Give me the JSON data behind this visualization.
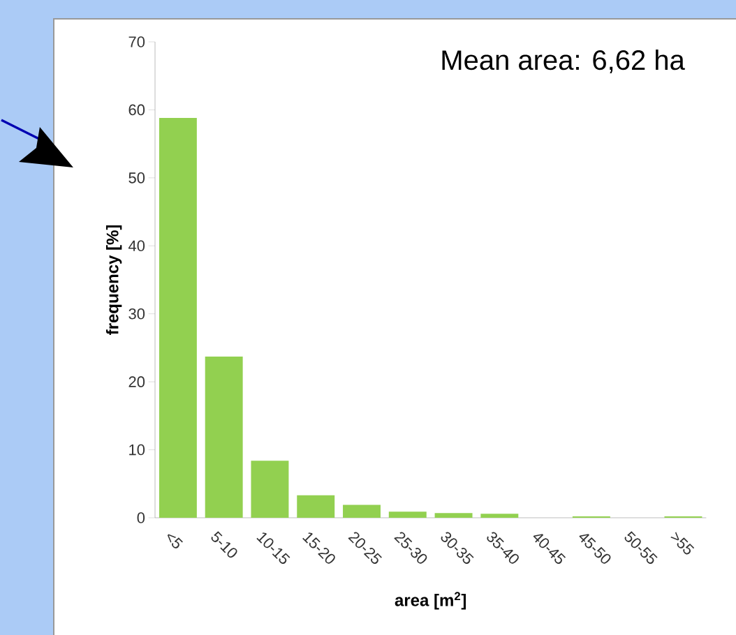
{
  "chart_data": {
    "type": "bar",
    "title": "Mean area: 6,62 ha",
    "xlabel": "area [m$^{2}$]",
    "ylabel": "frequency [%]",
    "categories": [
      "<5",
      "5-10",
      "10-15",
      "15-20",
      "20-25",
      "25-30",
      "30-35",
      "35-40",
      "40-45",
      "45-50",
      "50-55",
      ">55"
    ],
    "values": [
      58.8,
      23.7,
      8.4,
      3.3,
      1.9,
      0.9,
      0.7,
      0.6,
      0,
      0.2,
      0,
      0.2
    ],
    "color": "#92d050",
    "ylim": [
      0,
      70
    ],
    "yticks": [
      0,
      10,
      20,
      30,
      40,
      50,
      60,
      70
    ]
  }
}
